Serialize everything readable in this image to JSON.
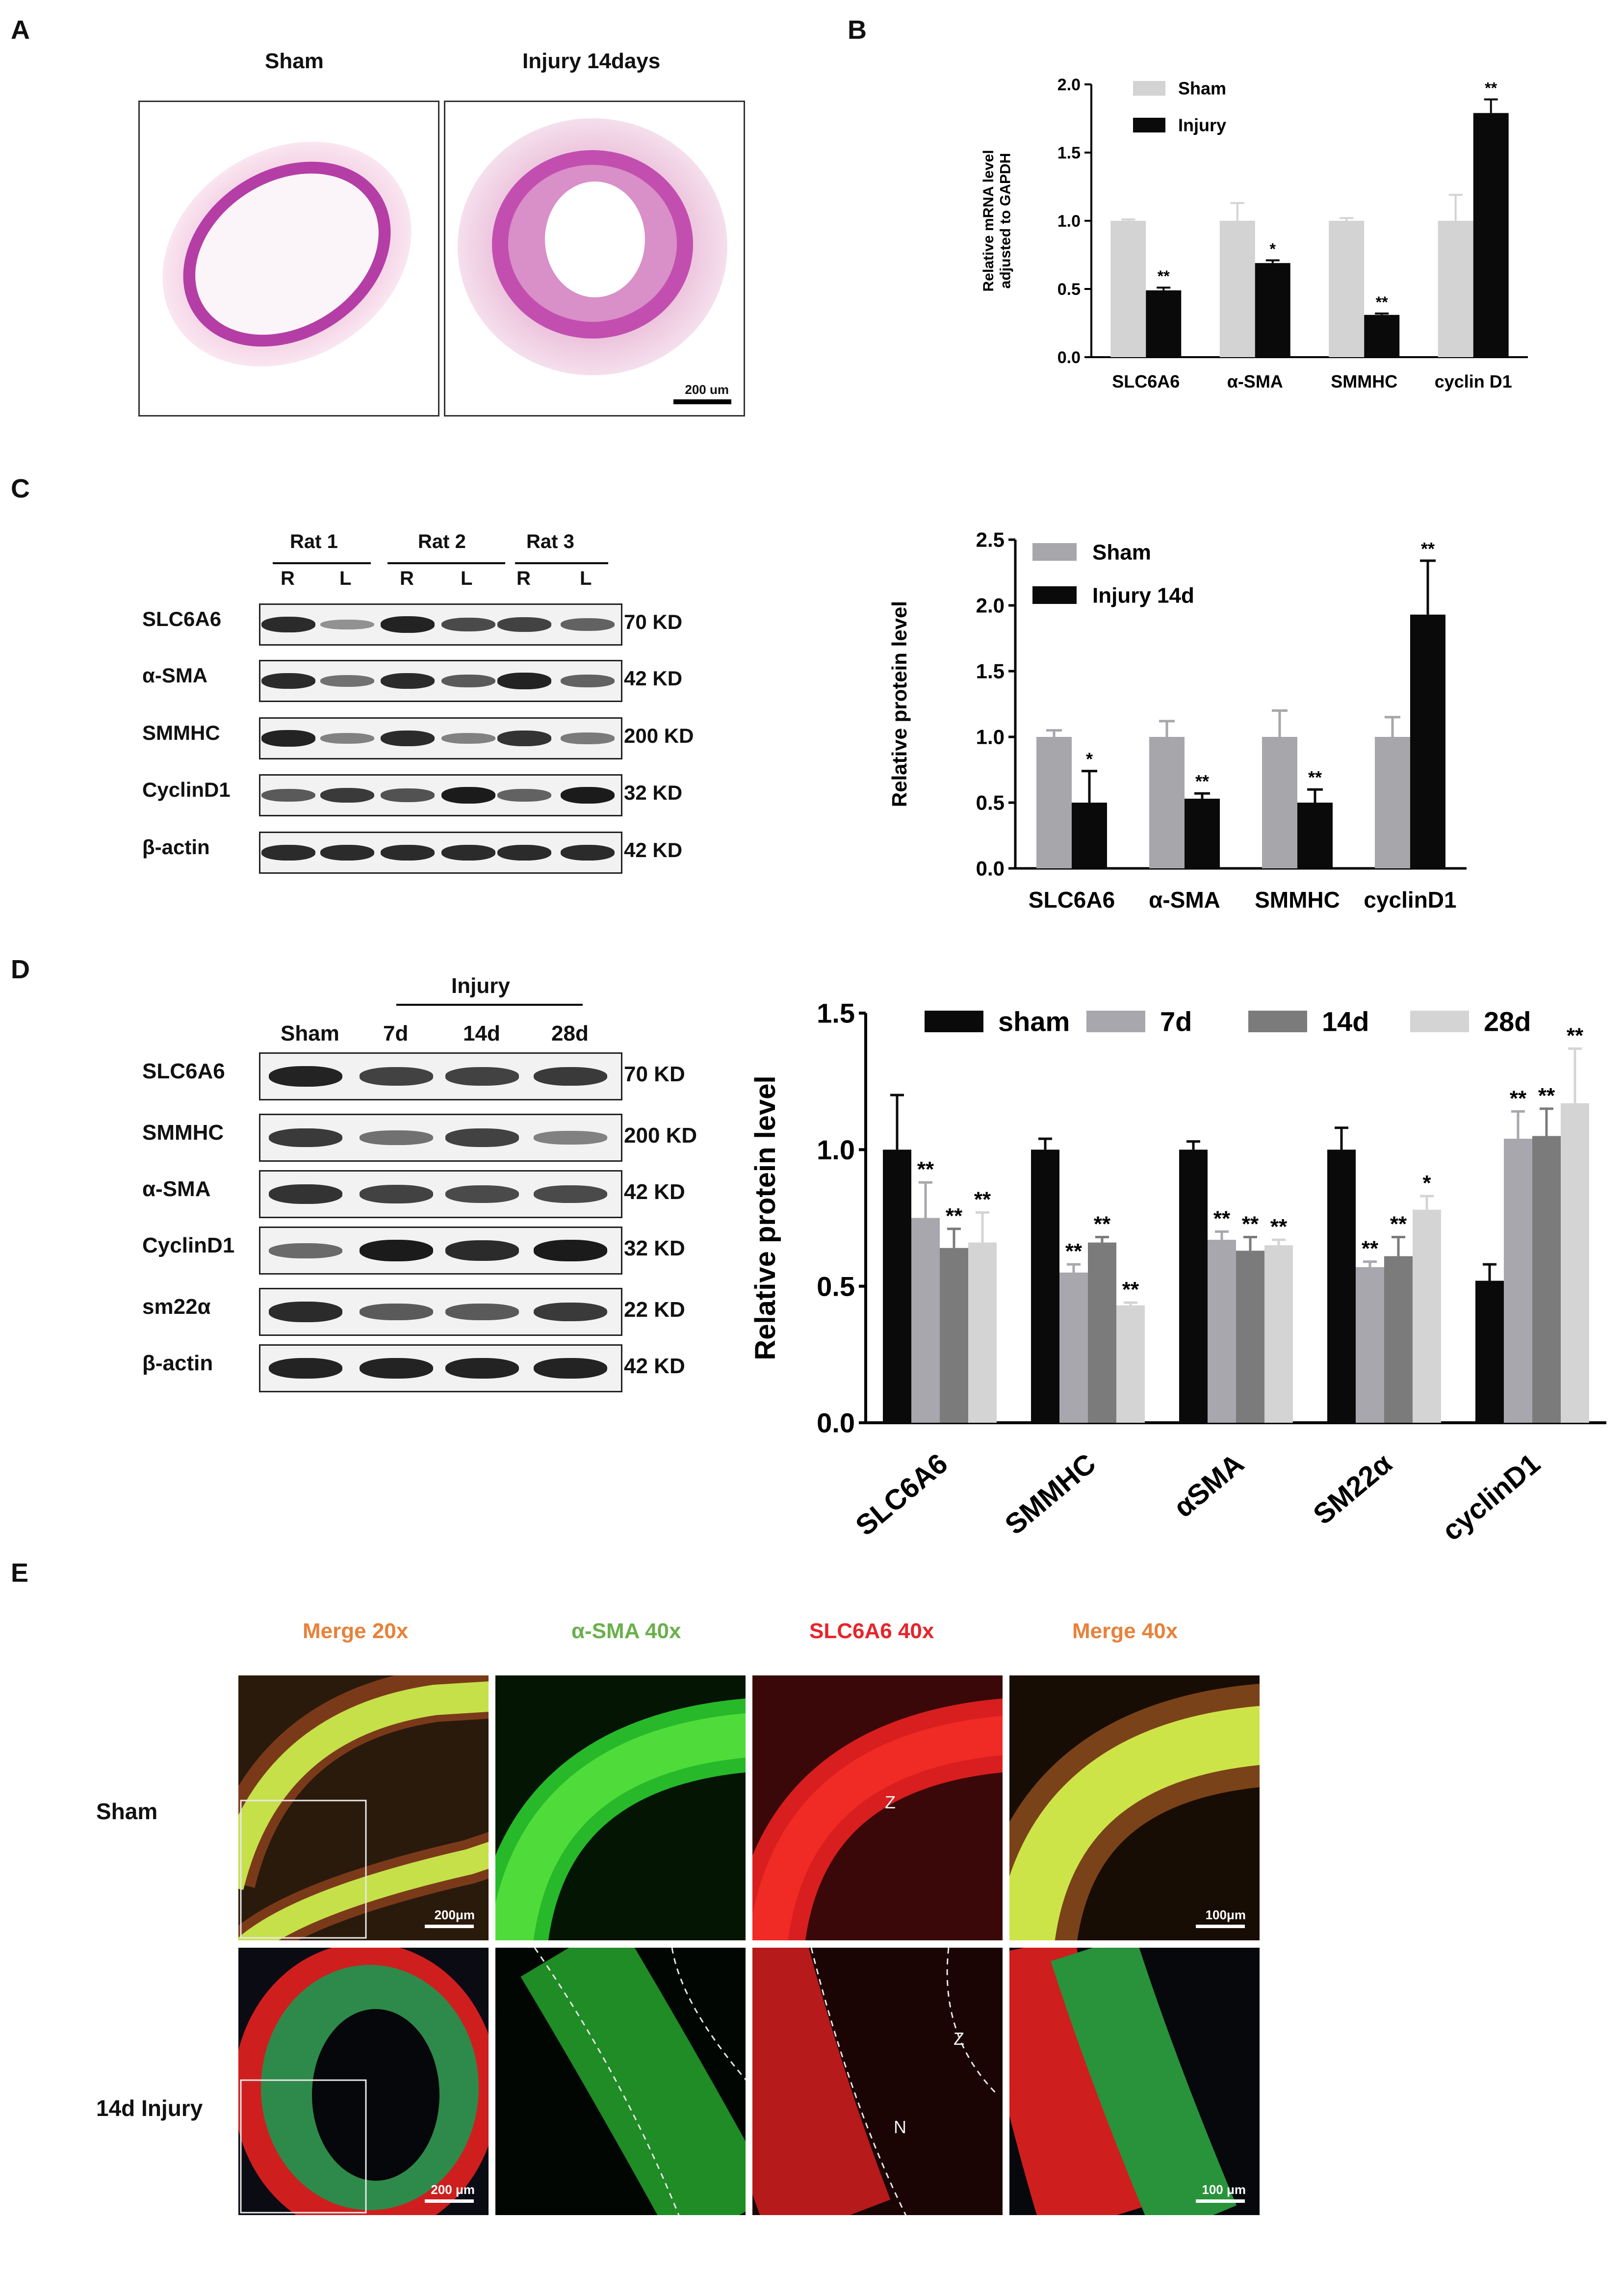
{
  "panel_letters": [
    "A",
    "B",
    "C",
    "D",
    "E"
  ],
  "panelA": {
    "titles": [
      "Sham",
      "Injury 14days"
    ],
    "scale_bar": "200 um"
  },
  "panelC_blot": {
    "rats": [
      "Rat 1",
      "Rat 2",
      "Rat 3"
    ],
    "lanes": [
      "R",
      "L",
      "R",
      "L",
      "R",
      "L"
    ],
    "rows": [
      {
        "protein": "SLC6A6",
        "size": "70 KD"
      },
      {
        "protein": "α-SMA",
        "size": "42 KD"
      },
      {
        "protein": "SMMHC",
        "size": "200 KD"
      },
      {
        "protein": "CyclinD1",
        "size": "32 KD"
      },
      {
        "protein": "β-actin",
        "size": "42 KD"
      }
    ]
  },
  "panelD_blot": {
    "group_label": "Injury",
    "lanes": [
      "Sham",
      "7d",
      "14d",
      "28d"
    ],
    "rows": [
      {
        "protein": "SLC6A6",
        "size": "70 KD"
      },
      {
        "protein": "SMMHC",
        "size": "200 KD"
      },
      {
        "protein": "α-SMA",
        "size": "42 KD"
      },
      {
        "protein": "CyclinD1",
        "size": "32 KD"
      },
      {
        "protein": "sm22α",
        "size": "22 KD"
      },
      {
        "protein": "β-actin",
        "size": "42 KD"
      }
    ]
  },
  "panelE": {
    "column_titles": [
      "Merge 20x",
      "α-SMA 40x",
      "SLC6A6 40x",
      "Merge 40x"
    ],
    "column_colors": [
      "#e8813a",
      "#6ab04c",
      "#e8232a",
      "#e8813a"
    ],
    "row_labels": [
      "Sham",
      "14d Injury"
    ],
    "scale_bars": [
      "200μm",
      "100μm",
      "200 μm",
      "100 μm"
    ],
    "markers": [
      "Z",
      "Z",
      "N"
    ]
  },
  "chart_data": [
    {
      "id": "B",
      "type": "bar",
      "categories": [
        "SLC6A6",
        "α-SMA",
        "SMMHC",
        "cyclin D1"
      ],
      "series": [
        {
          "name": "Sham",
          "color": "#d3d3d3",
          "values": [
            1.0,
            1.0,
            1.0,
            1.0
          ],
          "errors": [
            0.01,
            0.13,
            0.02,
            0.19
          ],
          "sig": [
            "",
            "",
            "",
            ""
          ]
        },
        {
          "name": "Injury",
          "color": "#0a0a0a",
          "values": [
            0.49,
            0.69,
            0.31,
            1.79
          ],
          "errors": [
            0.02,
            0.02,
            0.01,
            0.1
          ],
          "sig": [
            "**",
            "*",
            "**",
            "**"
          ]
        }
      ],
      "ylabel": [
        "Relative  mRNA level",
        "adjusted to GAPDH"
      ],
      "ylim": [
        0,
        2.0
      ],
      "yticks": [
        "0.0",
        "0.5",
        "1.0",
        "1.5",
        "2.0"
      ],
      "legend": "top-left"
    },
    {
      "id": "C",
      "type": "bar",
      "categories": [
        "SLC6A6",
        "α-SMA",
        "SMMHC",
        "cyclinD1"
      ],
      "series": [
        {
          "name": "Sham",
          "color": "#a6a6ab",
          "values": [
            1.0,
            1.0,
            1.0,
            1.0
          ],
          "errors": [
            0.05,
            0.12,
            0.2,
            0.15
          ],
          "sig": [
            "",
            "",
            "",
            ""
          ]
        },
        {
          "name": "Injury 14d",
          "color": "#0a0a0a",
          "values": [
            0.5,
            0.53,
            0.5,
            1.93
          ],
          "errors": [
            0.24,
            0.04,
            0.1,
            0.41
          ],
          "sig": [
            "*",
            "**",
            "**",
            "**"
          ]
        }
      ],
      "ylabel": [
        "Relative  protein level"
      ],
      "ylim": [
        0,
        2.5
      ],
      "yticks": [
        "0.0",
        "0.5",
        "1.0",
        "1.5",
        "2.0",
        "2.5"
      ],
      "legend": "top-left"
    },
    {
      "id": "D",
      "type": "bar",
      "categories": [
        "SLC6A6",
        "SMMHC",
        "αSMA",
        "SM22α",
        "cyclinD1"
      ],
      "series": [
        {
          "name": "sham",
          "color": "#0a0a0a",
          "values": [
            1.0,
            1.0,
            1.0,
            1.0,
            0.52
          ],
          "errors": [
            0.2,
            0.04,
            0.03,
            0.08,
            0.06
          ],
          "sig": [
            "",
            "",
            "",
            "",
            ""
          ]
        },
        {
          "name": "7d",
          "color": "#a7a7ad",
          "values": [
            0.75,
            0.55,
            0.67,
            0.57,
            1.04
          ],
          "errors": [
            0.13,
            0.03,
            0.03,
            0.02,
            0.1
          ],
          "sig": [
            "**",
            "**",
            "**",
            "**",
            "**"
          ]
        },
        {
          "name": "14d",
          "color": "#7b7b7b",
          "values": [
            0.64,
            0.66,
            0.63,
            0.61,
            1.05
          ],
          "errors": [
            0.07,
            0.02,
            0.05,
            0.07,
            0.1
          ],
          "sig": [
            "**",
            "**",
            "**",
            "**",
            "**"
          ]
        },
        {
          "name": "28d",
          "color": "#d4d4d4",
          "values": [
            0.66,
            0.43,
            0.65,
            0.78,
            1.17
          ],
          "errors": [
            0.11,
            0.01,
            0.02,
            0.05,
            0.2
          ],
          "sig": [
            "**",
            "**",
            "**",
            "*",
            "**"
          ]
        }
      ],
      "ylabel": [
        "Relative  protein level"
      ],
      "ylim": [
        0,
        1.5
      ],
      "yticks": [
        "0.0",
        "0.5",
        "1.0",
        "1.5"
      ],
      "legend": "top"
    }
  ]
}
